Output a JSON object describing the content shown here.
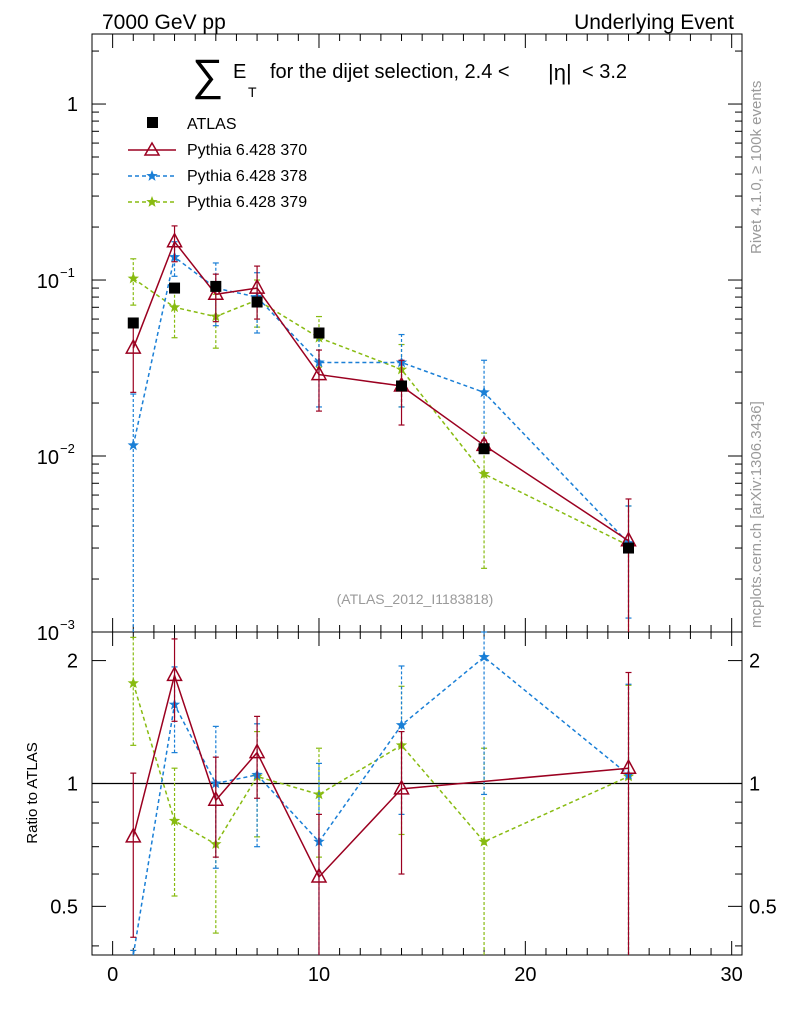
{
  "header": {
    "left": "7000 GeV pp",
    "right": "Underlying Event"
  },
  "side": {
    "rivet": "Rivet 4.1.0, ≥ 100k events",
    "mcplots": "mcplots.cern.ch [arXiv:1306.3436]"
  },
  "watermark": "(ATLAS_2012_I1183818)",
  "colors": {
    "atlas": "#000000",
    "p370": "#9b0020",
    "p378": "#1a7fd6",
    "p379": "#88bb11"
  },
  "chart_data": {
    "type": "scatter",
    "title": {
      "sum": "∑",
      "e": "E",
      "t": "T",
      "text": "for the dijet selection, 2.4 <",
      "eta": "|η|",
      "tail": "< 3.2"
    },
    "xlabel": "",
    "ylabel_ratio": "Ratio to ATLAS",
    "xlim": [
      -1,
      30.5
    ],
    "ylim": [
      0.001,
      2.5
    ],
    "ratio_ylim": [
      0.38,
      2.35
    ],
    "x_ticks": [
      "0",
      "10",
      "20",
      "30"
    ],
    "y_ticks": [
      {
        "v": 0.001,
        "base": "10",
        "exp": "−3"
      },
      {
        "v": 0.01,
        "base": "10",
        "exp": "−2"
      },
      {
        "v": 0.1,
        "base": "10",
        "exp": "−1"
      },
      {
        "v": 1,
        "label": "1"
      }
    ],
    "ratio_ticks": [
      {
        "v": 0.5,
        "label": "0.5"
      },
      {
        "v": 1,
        "label": "1"
      },
      {
        "v": 2,
        "label": "2"
      }
    ],
    "x": [
      1,
      3,
      5,
      7,
      10,
      14,
      18,
      25
    ],
    "series": [
      {
        "key": "atlas",
        "name": "ATLAS",
        "values": [
          0.057,
          0.09,
          0.092,
          0.075,
          0.05,
          0.025,
          0.011,
          0.003
        ],
        "err": [
          0,
          0,
          0,
          0,
          0,
          0,
          0,
          0
        ]
      },
      {
        "key": "p370",
        "name": "Pythia 6.428 370",
        "values": [
          0.041,
          0.165,
          0.083,
          0.09,
          0.029,
          0.025,
          0.0115,
          0.0033
        ],
        "err": [
          0.018,
          0.038,
          0.025,
          0.03,
          0.011,
          0.01,
          0.0008,
          0.0024
        ],
        "ratio": [
          0.74,
          1.84,
          0.91,
          1.19,
          0.59,
          0.97,
          null,
          1.09
        ],
        "ratio_err": [
          0.32,
          0.42,
          0.25,
          0.27,
          0.25,
          0.37,
          null,
          0.78
        ]
      },
      {
        "key": "p378",
        "name": "Pythia 6.428 378",
        "values": [
          0.0115,
          0.135,
          0.09,
          0.08,
          0.034,
          0.034,
          0.023,
          0.0032
        ],
        "err": [
          0.011,
          0.03,
          0.035,
          0.03,
          0.015,
          0.015,
          0.012,
          0.002
        ],
        "ratio": [
          0.2,
          1.56,
          1.0,
          1.05,
          0.72,
          1.39,
          2.04,
          1.05
        ],
        "ratio_err": [
          0.19,
          0.37,
          0.38,
          0.35,
          0.4,
          0.55,
          1.1,
          0.7
        ]
      },
      {
        "key": "p379",
        "name": "Pythia 6.428 379",
        "values": [
          0.102,
          0.07,
          0.062,
          0.077,
          0.047,
          0.031,
          0.0079,
          0.0031
        ],
        "err": [
          0.03,
          0.023,
          0.021,
          0.023,
          0.015,
          0.012,
          0.0056,
          0.0021
        ],
        "ratio": [
          1.76,
          0.81,
          0.71,
          1.04,
          0.94,
          1.24,
          0.72,
          1.04
        ],
        "ratio_err": [
          0.52,
          0.28,
          0.28,
          0.3,
          0.28,
          0.49,
          0.5,
          0.7
        ]
      }
    ]
  }
}
